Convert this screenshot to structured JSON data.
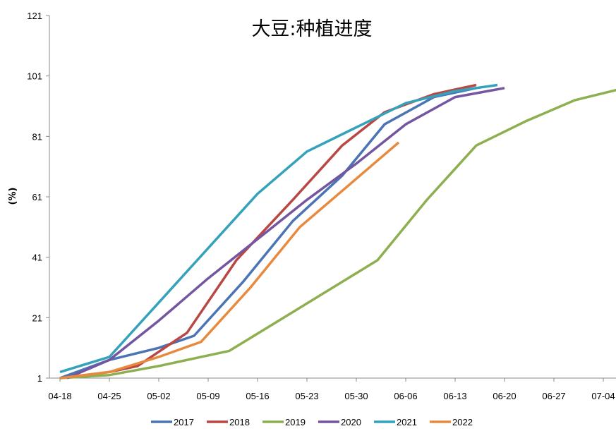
{
  "chart_data": {
    "type": "line",
    "title": "大豆:种植进度",
    "ylabel": "(%)",
    "xlabel": "",
    "ylim": [
      1,
      121
    ],
    "yticks": [
      1,
      21,
      41,
      61,
      81,
      101,
      121
    ],
    "x_range_days": [
      0,
      112
    ],
    "xticks": [
      {
        "day": 0,
        "label": "04-18"
      },
      {
        "day": 7,
        "label": "04-25"
      },
      {
        "day": 14,
        "label": "05-02"
      },
      {
        "day": 21,
        "label": "05-09"
      },
      {
        "day": 28,
        "label": "05-16"
      },
      {
        "day": 35,
        "label": "05-23"
      },
      {
        "day": 42,
        "label": "05-30"
      },
      {
        "day": 49,
        "label": "06-06"
      },
      {
        "day": 56,
        "label": "06-13"
      },
      {
        "day": 63,
        "label": "06-20"
      },
      {
        "day": 70,
        "label": "06-27"
      },
      {
        "day": 77,
        "label": "07-04"
      }
    ],
    "legend_position": "bottom",
    "grid": false,
    "series": [
      {
        "name": "2017",
        "color": "#4a74b4",
        "points": [
          [
            0,
            1
          ],
          [
            7,
            7
          ],
          [
            14,
            11
          ],
          [
            19,
            15
          ],
          [
            26,
            33
          ],
          [
            33,
            53
          ],
          [
            40,
            68
          ],
          [
            46,
            85
          ],
          [
            53,
            94
          ],
          [
            59,
            97
          ]
        ]
      },
      {
        "name": "2018",
        "color": "#b94744",
        "points": [
          [
            0,
            1
          ],
          [
            7,
            3
          ],
          [
            11,
            5
          ],
          [
            18,
            16
          ],
          [
            25,
            40
          ],
          [
            33,
            60
          ],
          [
            40,
            78
          ],
          [
            46,
            89
          ],
          [
            53,
            95
          ],
          [
            59,
            98
          ]
        ]
      },
      {
        "name": "2019",
        "color": "#8daf4f",
        "points": [
          [
            0,
            1
          ],
          [
            7,
            2
          ],
          [
            14,
            5
          ],
          [
            24,
            10
          ],
          [
            31,
            20
          ],
          [
            38,
            30
          ],
          [
            45,
            40
          ],
          [
            52,
            60
          ],
          [
            59,
            78
          ],
          [
            66,
            86
          ],
          [
            73,
            93
          ],
          [
            80,
            97
          ]
        ]
      },
      {
        "name": "2020",
        "color": "#7355a0",
        "points": [
          [
            1,
            1
          ],
          [
            7,
            7
          ],
          [
            14,
            20
          ],
          [
            21,
            34
          ],
          [
            28,
            47
          ],
          [
            35,
            60
          ],
          [
            42,
            72
          ],
          [
            49,
            85
          ],
          [
            56,
            94
          ],
          [
            63,
            97
          ]
        ]
      },
      {
        "name": "2021",
        "color": "#35a2bb",
        "points": [
          [
            0,
            3
          ],
          [
            7,
            8
          ],
          [
            14,
            26
          ],
          [
            21,
            44
          ],
          [
            28,
            62
          ],
          [
            35,
            76
          ],
          [
            42,
            84
          ],
          [
            49,
            92
          ],
          [
            56,
            96
          ],
          [
            62,
            98
          ]
        ]
      },
      {
        "name": "2022",
        "color": "#e88a3d",
        "points": [
          [
            0,
            1
          ],
          [
            7,
            3
          ],
          [
            14,
            8
          ],
          [
            20,
            13
          ],
          [
            27,
            31
          ],
          [
            34,
            51
          ],
          [
            41,
            65
          ],
          [
            48,
            79
          ]
        ]
      }
    ]
  }
}
